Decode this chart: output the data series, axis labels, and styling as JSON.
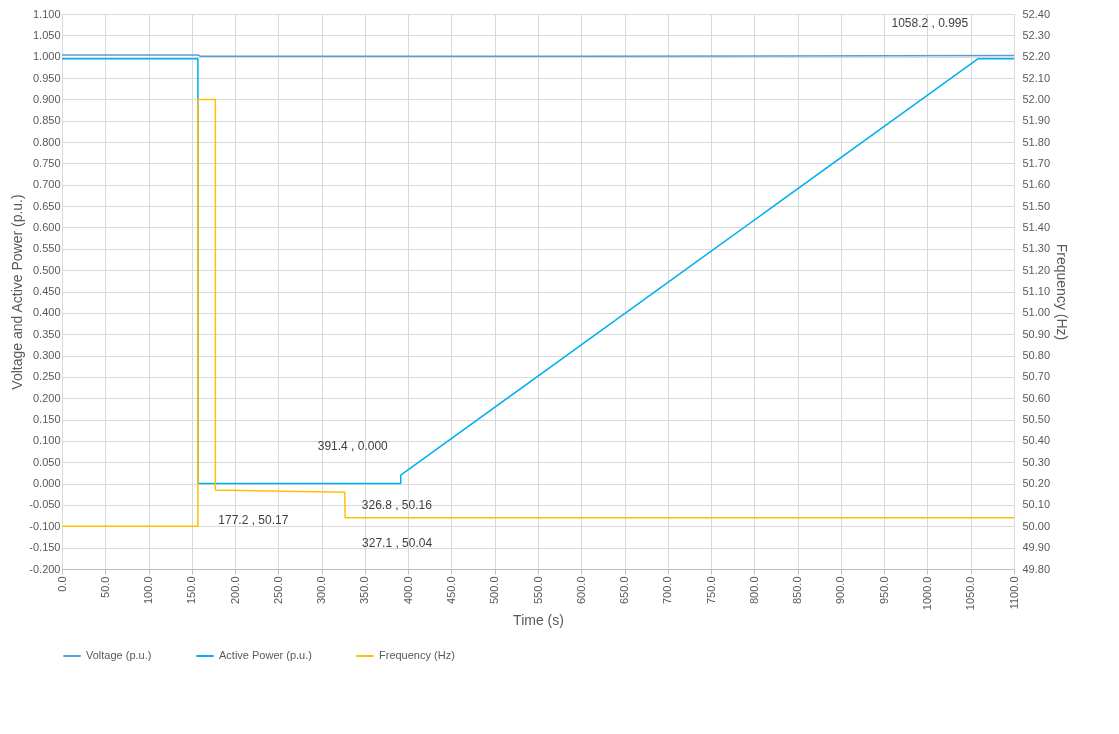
{
  "chart_data": {
    "type": "line",
    "xlabel": "Time (s)",
    "ylabel": "Voltage and Active Power (p.u.)",
    "y2label": "Frequency (Hz)",
    "series": [
      {
        "name": "Voltage (p.u.)",
        "color": "#5b9bd5",
        "x": [
          0,
          157,
          160,
          600,
          1100
        ],
        "values": [
          1.004,
          1.004,
          1.001,
          1.001,
          1.003
        ]
      },
      {
        "name": "Active Power (p.u.)",
        "color": "#00b0f0",
        "x": [
          0,
          157,
          157,
          391.4,
          391.4,
          1058.2,
          1100
        ],
        "values": [
          0.995,
          0.995,
          0,
          0,
          0.02,
          0.995,
          0.995
        ]
      },
      {
        "name": "Frequency (Hz)",
        "color": "#ffc000",
        "axis": "y2",
        "x": [
          0,
          157,
          157,
          177.2,
          177.2,
          326.8,
          327.1,
          1100
        ],
        "values": [
          50.0,
          50.0,
          52.0,
          52.0,
          50.17,
          50.16,
          50.04,
          50.04
        ]
      }
    ],
    "xlim": [
      0,
      1100
    ],
    "xticks": [
      {
        "value": 0,
        "label": "0.0"
      },
      {
        "value": 50,
        "label": "50.0"
      },
      {
        "value": 100,
        "label": "100.0"
      },
      {
        "value": 150,
        "label": "150.0"
      },
      {
        "value": 200,
        "label": "200.0"
      },
      {
        "value": 250,
        "label": "250.0"
      },
      {
        "value": 300,
        "label": "300.0"
      },
      {
        "value": 350,
        "label": "350.0"
      },
      {
        "value": 400,
        "label": "400.0"
      },
      {
        "value": 450,
        "label": "450.0"
      },
      {
        "value": 500,
        "label": "500.0"
      },
      {
        "value": 550,
        "label": "550.0"
      },
      {
        "value": 600,
        "label": "600.0"
      },
      {
        "value": 650,
        "label": "650.0"
      },
      {
        "value": 700,
        "label": "700.0"
      },
      {
        "value": 750,
        "label": "750.0"
      },
      {
        "value": 800,
        "label": "800.0"
      },
      {
        "value": 850,
        "label": "850.0"
      },
      {
        "value": 900,
        "label": "900.0"
      },
      {
        "value": 950,
        "label": "950.0"
      },
      {
        "value": 1000,
        "label": "1000.0"
      },
      {
        "value": 1050,
        "label": "1050.0"
      },
      {
        "value": 1100,
        "label": "1100.0"
      }
    ],
    "ylim": [
      -0.2,
      1.1
    ],
    "yticks": [
      {
        "value": -0.2,
        "label": "-0.200"
      },
      {
        "value": -0.15,
        "label": "-0.150"
      },
      {
        "value": -0.1,
        "label": "-0.100"
      },
      {
        "value": -0.05,
        "label": "-0.050"
      },
      {
        "value": 0,
        "label": "0.000"
      },
      {
        "value": 0.05,
        "label": "0.050"
      },
      {
        "value": 0.1,
        "label": "0.100"
      },
      {
        "value": 0.15,
        "label": "0.150"
      },
      {
        "value": 0.2,
        "label": "0.200"
      },
      {
        "value": 0.25,
        "label": "0.250"
      },
      {
        "value": 0.3,
        "label": "0.300"
      },
      {
        "value": 0.35,
        "label": "0.350"
      },
      {
        "value": 0.4,
        "label": "0.400"
      },
      {
        "value": 0.45,
        "label": "0.450"
      },
      {
        "value": 0.5,
        "label": "0.500"
      },
      {
        "value": 0.55,
        "label": "0.550"
      },
      {
        "value": 0.6,
        "label": "0.600"
      },
      {
        "value": 0.65,
        "label": "0.650"
      },
      {
        "value": 0.7,
        "label": "0.700"
      },
      {
        "value": 0.75,
        "label": "0.750"
      },
      {
        "value": 0.8,
        "label": "0.800"
      },
      {
        "value": 0.85,
        "label": "0.850"
      },
      {
        "value": 0.9,
        "label": "0.900"
      },
      {
        "value": 0.95,
        "label": "0.950"
      },
      {
        "value": 1,
        "label": "1.000"
      },
      {
        "value": 1.05,
        "label": "1.050"
      },
      {
        "value": 1.1,
        "label": "1.100"
      }
    ],
    "y2lim": [
      49.8,
      52.4
    ],
    "y2ticks": [
      {
        "value": 49.8,
        "label": "49.80"
      },
      {
        "value": 49.9,
        "label": "49.90"
      },
      {
        "value": 50,
        "label": "50.00"
      },
      {
        "value": 50.1,
        "label": "50.10"
      },
      {
        "value": 50.2,
        "label": "50.20"
      },
      {
        "value": 50.3,
        "label": "50.30"
      },
      {
        "value": 50.4,
        "label": "50.40"
      },
      {
        "value": 50.5,
        "label": "50.50"
      },
      {
        "value": 50.6,
        "label": "50.60"
      },
      {
        "value": 50.7,
        "label": "50.70"
      },
      {
        "value": 50.8,
        "label": "50.80"
      },
      {
        "value": 50.9,
        "label": "50.90"
      },
      {
        "value": 51,
        "label": "51.00"
      },
      {
        "value": 51.1,
        "label": "51.10"
      },
      {
        "value": 51.2,
        "label": "51.20"
      },
      {
        "value": 51.3,
        "label": "51.30"
      },
      {
        "value": 51.4,
        "label": "51.40"
      },
      {
        "value": 51.5,
        "label": "51.50"
      },
      {
        "value": 51.6,
        "label": "51.60"
      },
      {
        "value": 51.7,
        "label": "51.70"
      },
      {
        "value": 51.8,
        "label": "51.80"
      },
      {
        "value": 51.9,
        "label": "51.90"
      },
      {
        "value": 52,
        "label": "52.00"
      },
      {
        "value": 52.1,
        "label": "52.10"
      },
      {
        "value": 52.2,
        "label": "52.20"
      },
      {
        "value": 52.3,
        "label": "52.30"
      },
      {
        "value": 52.4,
        "label": "52.40"
      }
    ],
    "annotations": [
      {
        "text": "1058.2 , 0.995",
        "x": 1058.2,
        "y": 0.995
      },
      {
        "text": "391.4 , 0.000",
        "x": 391.4,
        "y": 0
      },
      {
        "text": "177.2 , 50.17",
        "x": 177.2,
        "y": -0.015
      },
      {
        "text": "326.8 , 50.16",
        "x": 326.8,
        "y": -0.02
      },
      {
        "text": "327.1 , 50.04",
        "x": 327.1,
        "y": -0.08
      }
    ],
    "grid": true,
    "legend": "bottom",
    "line_style": "solid"
  }
}
